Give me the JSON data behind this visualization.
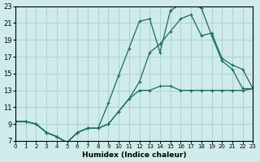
{
  "xlabel": "Humidex (Indice chaleur)",
  "ylabel": "",
  "background_color": "#d0ecea",
  "grid_color": "#b0d4d0",
  "line_color": "#1a6b5a",
  "xlim": [
    0,
    23
  ],
  "ylim": [
    7,
    23
  ],
  "xticks": [
    0,
    1,
    2,
    3,
    4,
    5,
    6,
    7,
    8,
    9,
    10,
    11,
    12,
    13,
    14,
    15,
    16,
    17,
    18,
    19,
    20,
    21,
    22,
    23
  ],
  "yticks": [
    7,
    9,
    11,
    13,
    15,
    17,
    19,
    21,
    23
  ],
  "line1_x": [
    0,
    1,
    2,
    3,
    4,
    5,
    6,
    7,
    8,
    9,
    10,
    11,
    12,
    13,
    14,
    15,
    16,
    17,
    18,
    19,
    20,
    21,
    22,
    23
  ],
  "line1_y": [
    9.3,
    9.3,
    9.0,
    8.0,
    7.5,
    6.8,
    8.0,
    8.5,
    8.5,
    9.0,
    10.5,
    12.0,
    13.0,
    13.0,
    13.5,
    13.5,
    13.0,
    13.0,
    13.0,
    13.0,
    13.0,
    13.0,
    13.0,
    13.2
  ],
  "line2_x": [
    0,
    1,
    2,
    3,
    4,
    5,
    6,
    7,
    8,
    9,
    10,
    11,
    12,
    13,
    14,
    15,
    16,
    17,
    18,
    19,
    20,
    21,
    22,
    23
  ],
  "line2_y": [
    9.3,
    9.3,
    9.0,
    8.0,
    7.5,
    6.8,
    8.0,
    8.5,
    8.5,
    11.5,
    14.8,
    18.0,
    21.2,
    21.5,
    17.5,
    22.5,
    23.2,
    23.2,
    22.8,
    19.5,
    16.5,
    15.5,
    13.2,
    13.2
  ],
  "line3_x": [
    0,
    1,
    2,
    3,
    4,
    5,
    6,
    7,
    8,
    9,
    10,
    11,
    12,
    13,
    14,
    15,
    16,
    17,
    18,
    19,
    20,
    21,
    22,
    23
  ],
  "line3_y": [
    9.3,
    9.3,
    9.0,
    8.0,
    7.5,
    6.8,
    8.0,
    8.5,
    8.5,
    9.0,
    10.5,
    12.0,
    14.0,
    17.5,
    18.5,
    20.0,
    21.5,
    22.0,
    19.5,
    19.8,
    16.8,
    16.0,
    15.5,
    13.2
  ]
}
